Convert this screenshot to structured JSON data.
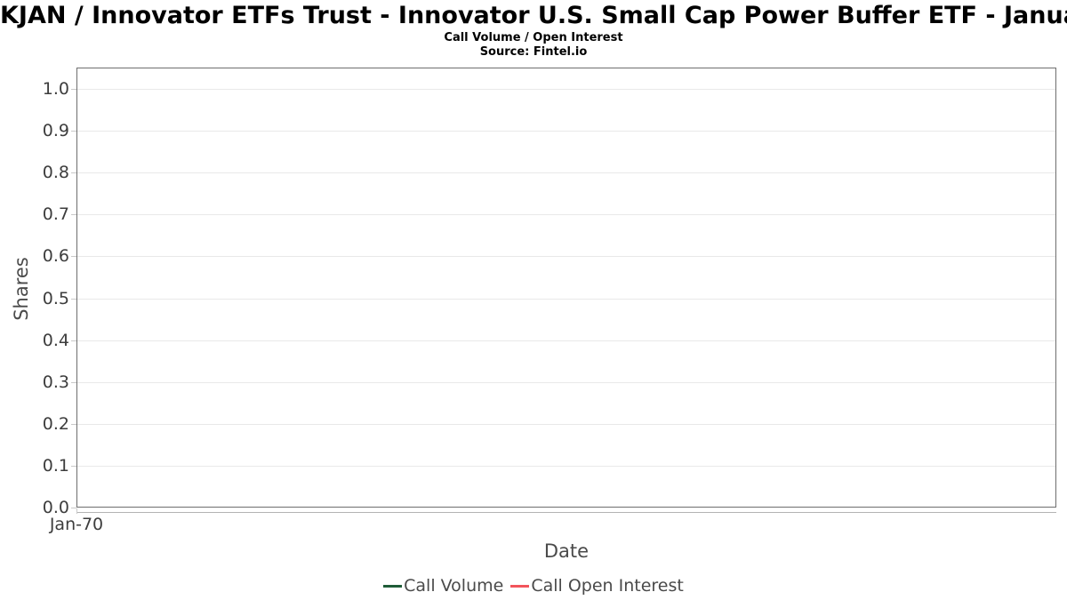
{
  "chart": {
    "title": "KJAN / Innovator ETFs Trust - Innovator U.S. Small Cap Power Buffer ETF - January",
    "subtitle": "Call Volume / Open Interest",
    "source": "Source: Fintel.io",
    "xlabel": "Date",
    "ylabel": "Shares",
    "y_ticks": [
      "1.0",
      "0.9",
      "0.8",
      "0.7",
      "0.6",
      "0.5",
      "0.4",
      "0.3",
      "0.2",
      "0.1",
      "0.0"
    ],
    "x_ticks": [
      "Jan-70"
    ],
    "legend": [
      {
        "label": "Call Volume",
        "color": "#1f5c38"
      },
      {
        "label": "Call Open Interest",
        "color": "#f2545b"
      }
    ],
    "colors": {
      "call_volume": "#1f5c38",
      "call_open_interest": "#f2545b",
      "gridline": "#e9e9e9",
      "plot_border": "#6e6e6e"
    }
  },
  "chart_data": {
    "type": "line",
    "title": "KJAN / Innovator ETFs Trust - Innovator U.S. Small Cap Power Buffer ETF - January",
    "subtitle": "Call Volume / Open Interest",
    "source": "Source: Fintel.io",
    "xlabel": "Date",
    "ylabel": "Shares",
    "x": [
      "Jan-70"
    ],
    "series": [
      {
        "name": "Call Volume",
        "color": "#1f5c38",
        "values": []
      },
      {
        "name": "Call Open Interest",
        "color": "#f2545b",
        "values": []
      }
    ],
    "ylim": [
      0.0,
      1.05
    ],
    "y_tick_step": 0.1,
    "grid": true,
    "legend_position": "bottom",
    "note_empty": "No data points are plotted; chart area is empty"
  }
}
